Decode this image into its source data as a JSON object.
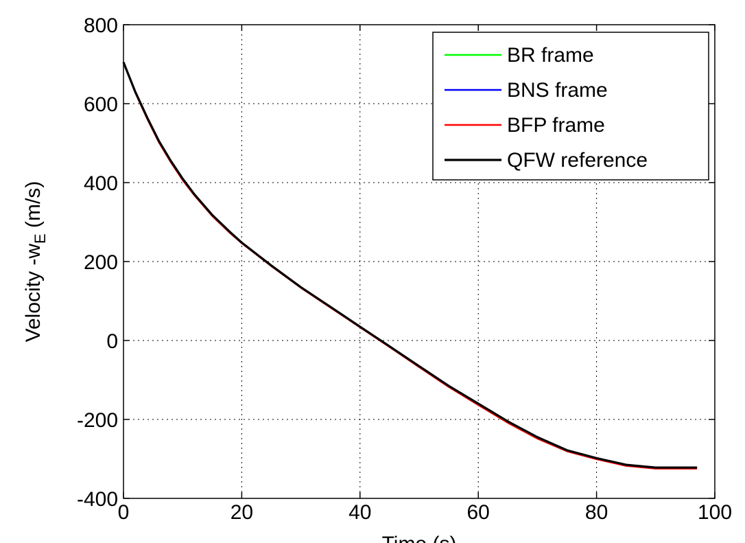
{
  "chart_data": {
    "type": "line",
    "title": "",
    "xlabel": "Time (s)",
    "ylabel_main": "Velocity -w",
    "ylabel_sub": "E",
    "ylabel_unit": " (m/s)",
    "xlim": [
      0,
      100
    ],
    "ylim": [
      -400,
      800
    ],
    "xticks": [
      0,
      20,
      40,
      60,
      80,
      100
    ],
    "yticks": [
      -400,
      -200,
      0,
      200,
      400,
      600,
      800
    ],
    "grid": true,
    "legend_position": "top-right",
    "x": [
      0,
      2,
      4,
      6,
      8,
      10,
      12,
      15,
      18,
      20,
      25,
      30,
      35,
      40,
      45,
      50,
      55,
      60,
      65,
      70,
      75,
      80,
      85,
      90,
      95,
      97
    ],
    "series": [
      {
        "name": "BR frame",
        "color": "#00ff00",
        "values": [
          705,
          630,
          565,
          505,
          455,
          410,
          370,
          318,
          275,
          248,
          190,
          135,
          85,
          35,
          -15,
          -65,
          -115,
          -160,
          -205,
          -245,
          -278,
          -298,
          -315,
          -322,
          -322,
          -322
        ]
      },
      {
        "name": "BNS frame",
        "color": "#0000ff",
        "values": [
          705,
          630,
          565,
          505,
          455,
          410,
          370,
          318,
          275,
          248,
          190,
          135,
          85,
          35,
          -15,
          -65,
          -115,
          -160,
          -205,
          -245,
          -278,
          -298,
          -315,
          -322,
          -322,
          -322
        ]
      },
      {
        "name": "BFP frame",
        "color": "#ff0000",
        "values": [
          703,
          627,
          561,
          501,
          451,
          406,
          367,
          315,
          272,
          246,
          188,
          133,
          83,
          33,
          -17,
          -68,
          -118,
          -164,
          -209,
          -249,
          -281,
          -301,
          -318,
          -325,
          -325,
          -325
        ]
      },
      {
        "name": "QFW reference",
        "color": "#000000",
        "values": [
          705,
          630,
          565,
          505,
          455,
          410,
          370,
          318,
          275,
          248,
          190,
          135,
          85,
          35,
          -15,
          -65,
          -115,
          -160,
          -205,
          -245,
          -278,
          -298,
          -315,
          -322,
          -322,
          -322
        ]
      }
    ]
  }
}
